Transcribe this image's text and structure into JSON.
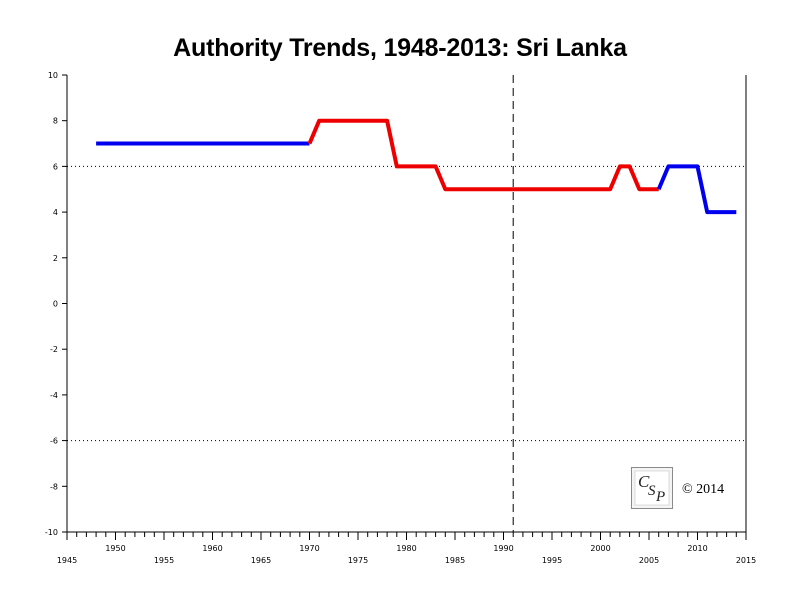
{
  "chart_data": {
    "type": "line",
    "title": "Authority Trends, 1948-2013: Sri Lanka",
    "xlabel": "",
    "ylabel": "",
    "xlim": [
      1945,
      2015
    ],
    "ylim": [
      -10,
      10
    ],
    "x_major_ticks": [
      1945,
      1950,
      1955,
      1960,
      1965,
      1970,
      1975,
      1980,
      1985,
      1990,
      1995,
      2000,
      2005,
      2010,
      2015
    ],
    "y_major_ticks": [
      -10,
      -8,
      -6,
      -4,
      -2,
      0,
      2,
      4,
      6,
      8,
      10
    ],
    "reference_lines": {
      "horizontal_dotted": [
        6,
        -6
      ],
      "vertical_dashed": [
        1991
      ]
    },
    "grid": false,
    "segments": [
      {
        "color": "#0000ee",
        "points": [
          [
            1948,
            7
          ],
          [
            1970,
            7
          ]
        ]
      },
      {
        "color": "#ee0000",
        "points": [
          [
            1970,
            7
          ],
          [
            1971,
            8
          ],
          [
            1978,
            8
          ],
          [
            1979,
            6
          ],
          [
            1983,
            6
          ],
          [
            1984,
            5
          ],
          [
            2001,
            5
          ],
          [
            2002,
            6
          ],
          [
            2003,
            6
          ],
          [
            2004,
            5
          ],
          [
            2006,
            5
          ]
        ]
      },
      {
        "color": "#0000ee",
        "points": [
          [
            2006,
            5
          ],
          [
            2007,
            6
          ],
          [
            2010,
            6
          ],
          [
            2011,
            4
          ],
          [
            2014,
            4
          ]
        ]
      }
    ]
  },
  "copyright": "© 2014",
  "logo": {
    "letters": [
      "C",
      "S",
      "P"
    ]
  }
}
